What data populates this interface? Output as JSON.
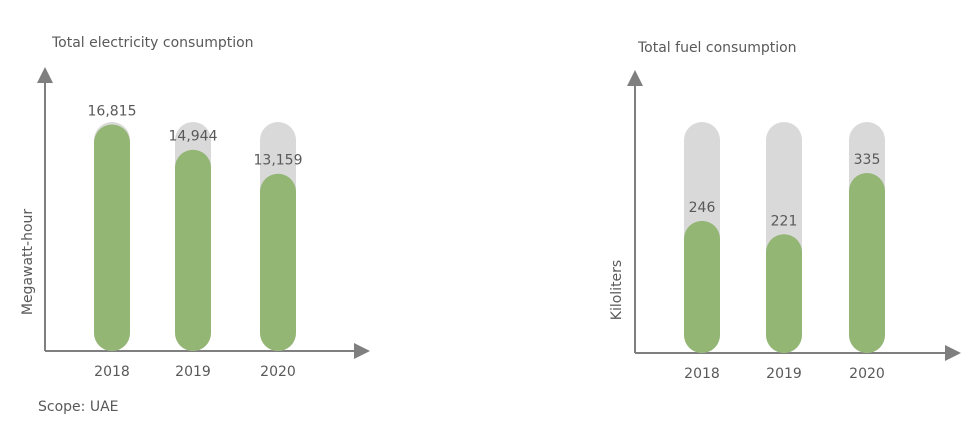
{
  "chart_data": [
    {
      "type": "bar",
      "title": "Total electricity consumption",
      "y_label": "Megawatt-hour",
      "categories": [
        "2018",
        "2019",
        "2020"
      ],
      "values": [
        16815,
        14944,
        13159
      ],
      "value_labels": [
        "16,815",
        "14,944",
        "13,159"
      ],
      "color": "#93b674",
      "background_color": "#d9d9d9",
      "ylim": [
        0,
        17000
      ]
    },
    {
      "type": "bar",
      "title": "Total fuel consumption",
      "y_label": "Kiloliters",
      "categories": [
        "2018",
        "2019",
        "2020"
      ],
      "values": [
        246,
        221,
        335
      ],
      "color": "#93b674",
      "background_color": "#d9d9d9",
      "ylim": [
        0,
        430
      ]
    }
  ],
  "footnote": "Scope: UAE"
}
